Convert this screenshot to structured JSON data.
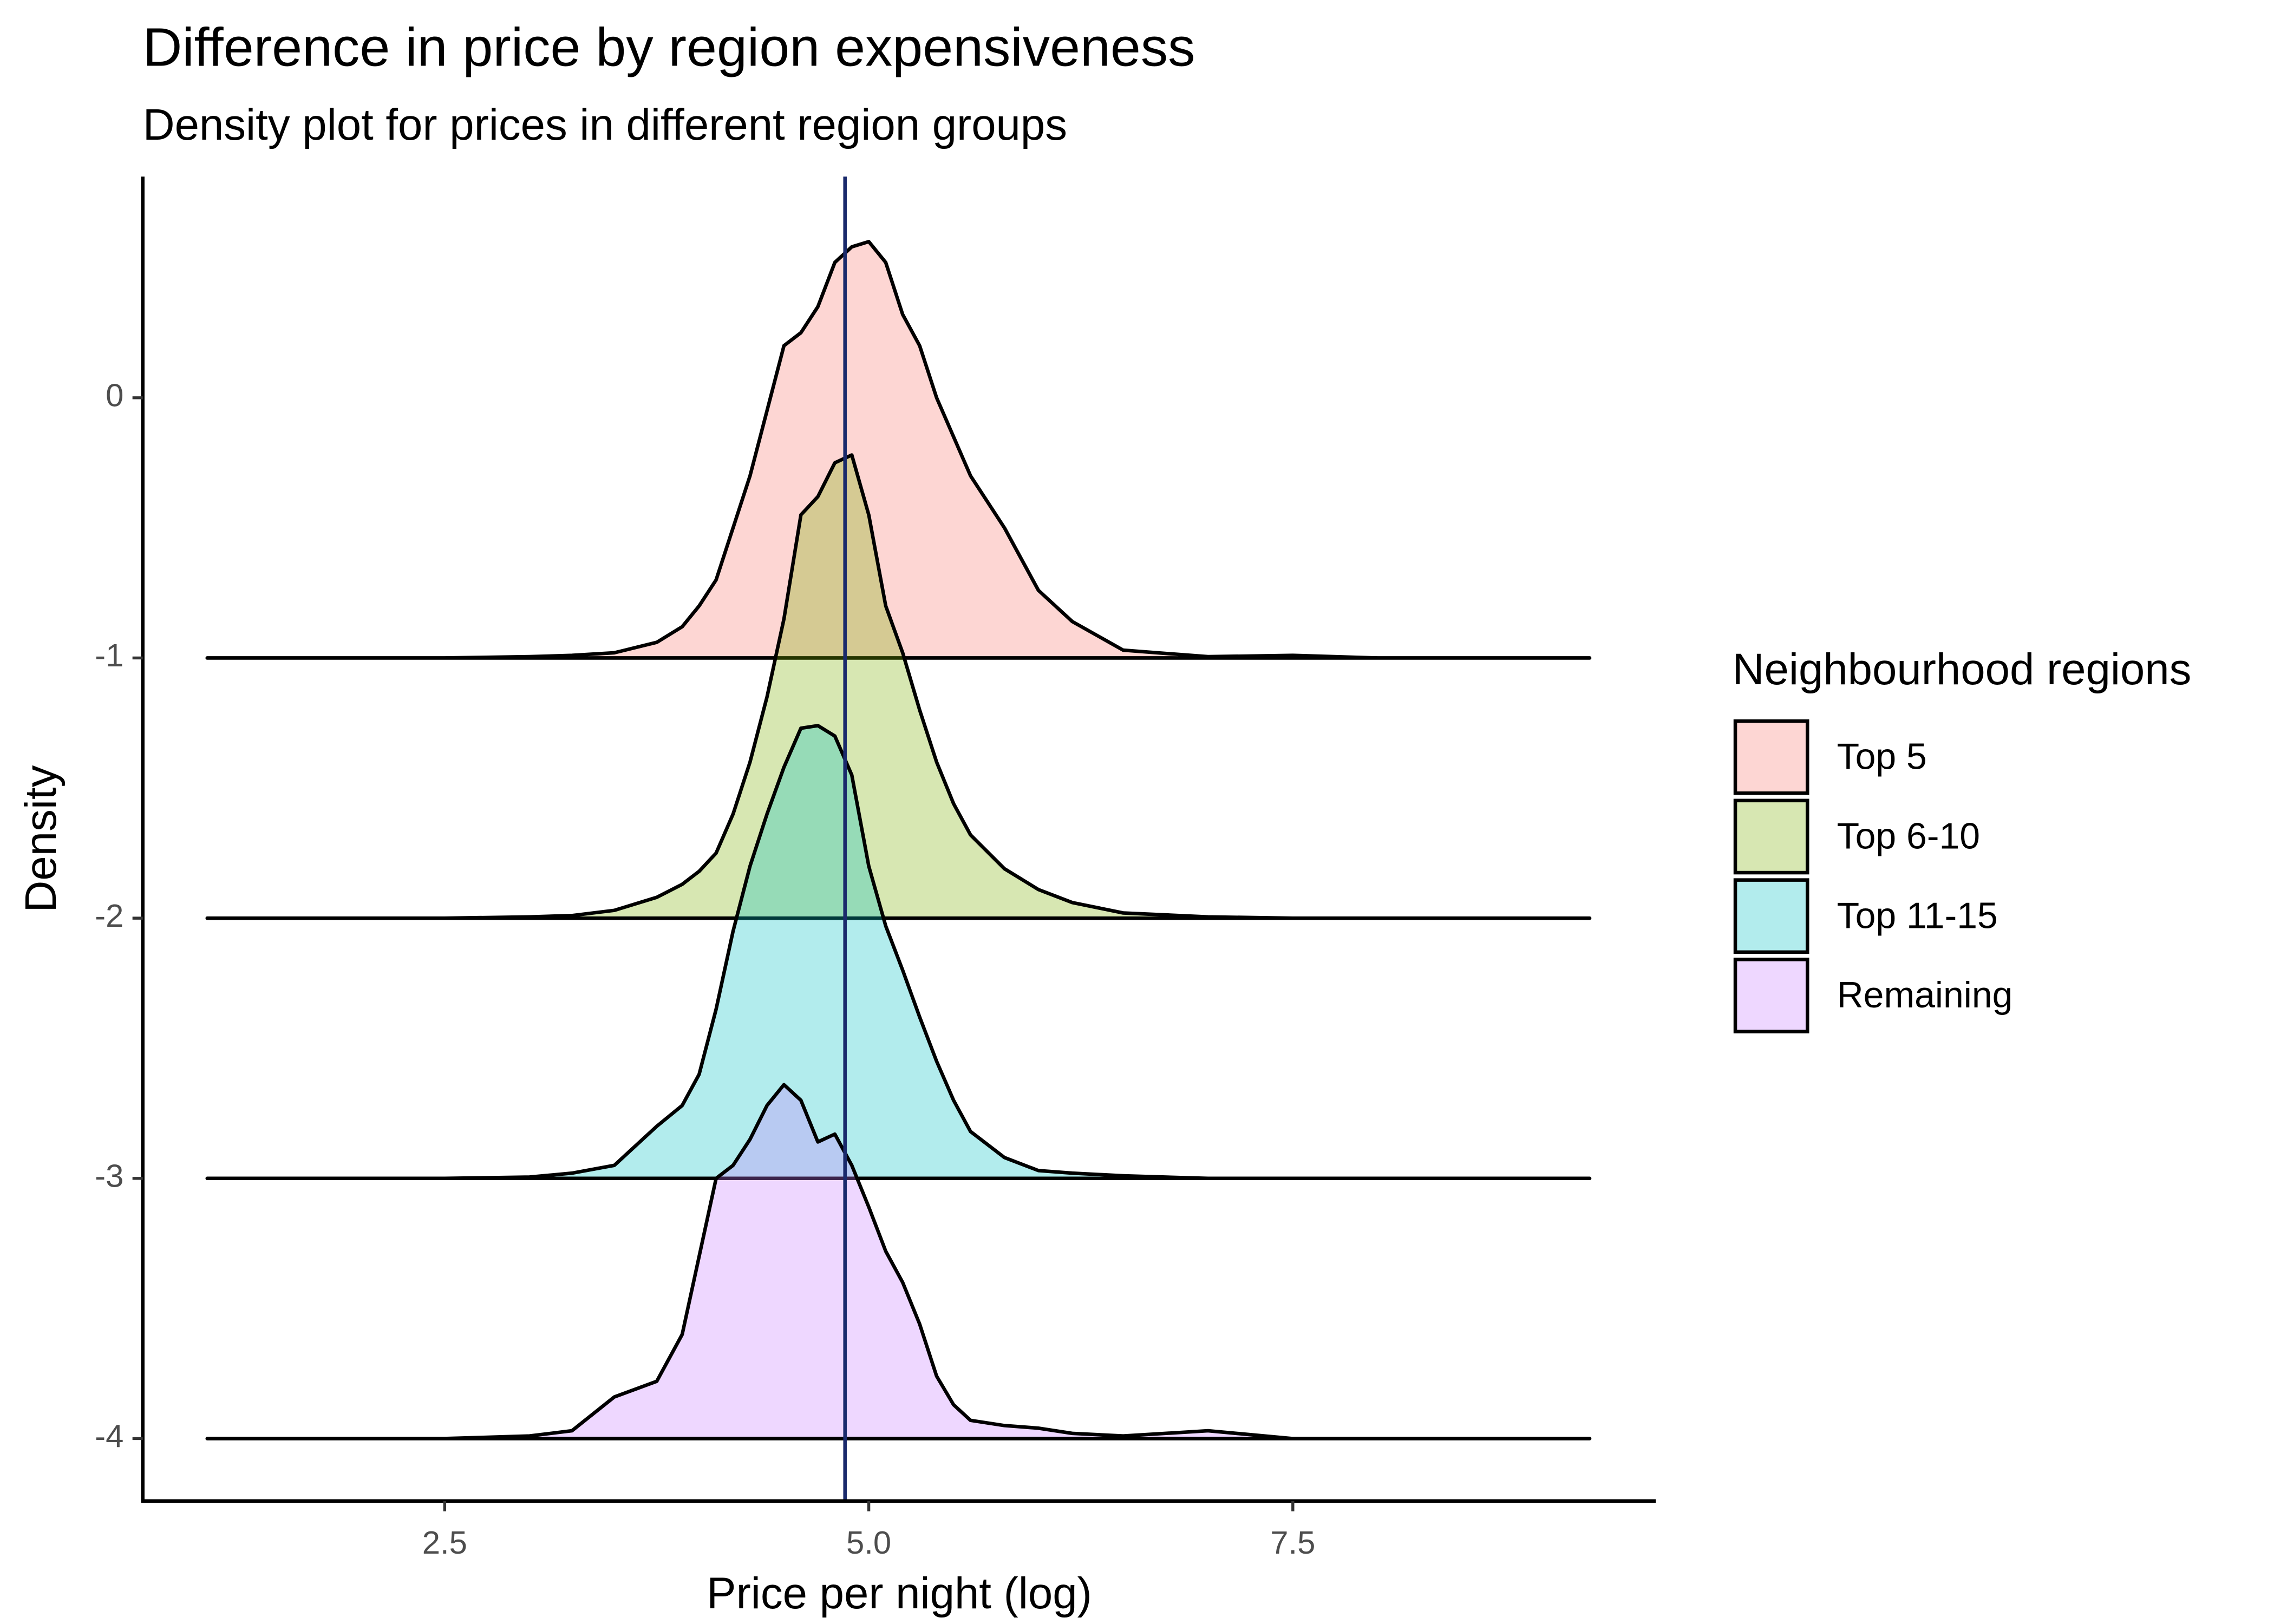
{
  "chart_data": {
    "type": "ridgeline",
    "title": "Difference in price by region expensiveness",
    "subtitle": "Density plot for prices in different region groups",
    "x_label": "Price per night (log)",
    "y_label": "Density",
    "legend_title": "Neighbourhood regions",
    "legend_position": "right",
    "grid": false,
    "fill_opacity": 0.3,
    "xlim": [
      0.72,
      9.64
    ],
    "ylim": [
      -4.24,
      0.85
    ],
    "xticks": [
      2.5,
      {
        "value": 5,
        "label": "5.0"
      },
      7.5
    ],
    "yticks": [
      -4,
      -3,
      -2,
      -1,
      0
    ],
    "vline": {
      "value": 4.86,
      "color": "#1a2a6c"
    },
    "x": [
      1.1,
      2.5,
      3.0,
      3.25,
      3.5,
      3.75,
      3.9,
      4.0,
      4.1,
      4.2,
      4.3,
      4.4,
      4.5,
      4.6,
      4.7,
      4.8,
      4.9,
      5.0,
      5.1,
      5.2,
      5.3,
      5.4,
      5.5,
      5.6,
      5.8,
      6.0,
      6.2,
      6.5,
      7.0,
      7.5,
      8.0,
      9.25
    ],
    "series": [
      {
        "name": "Top 5",
        "color": "#F8766D",
        "values": [
          -1,
          -1,
          -0.995,
          -0.99,
          -0.98,
          -0.94,
          -0.88,
          -0.8,
          -0.7,
          -0.5,
          -0.3,
          -0.05,
          0.2,
          0.25,
          0.35,
          0.52,
          0.58,
          0.6,
          0.52,
          0.32,
          0.2,
          0.0,
          -0.15,
          -0.3,
          -0.5,
          -0.74,
          -0.86,
          -0.97,
          -0.995,
          -0.99,
          -1,
          -1
        ]
      },
      {
        "name": "Top 6-10",
        "color": "#7CAE00",
        "values": [
          -2,
          -2,
          -1.995,
          -1.99,
          -1.97,
          -1.92,
          -1.87,
          -1.82,
          -1.75,
          -1.6,
          -1.4,
          -1.15,
          -0.85,
          -0.45,
          -0.38,
          -0.25,
          -0.22,
          -0.45,
          -0.8,
          -0.98,
          -1.2,
          -1.4,
          -1.56,
          -1.68,
          -1.81,
          -1.89,
          -1.94,
          -1.98,
          -1.995,
          -2,
          -2,
          -2
        ]
      },
      {
        "name": "Top 11-15",
        "color": "#00BFC4",
        "values": [
          -3,
          -3,
          -2.995,
          -2.98,
          -2.95,
          -2.8,
          -2.72,
          -2.6,
          -2.35,
          -2.05,
          -1.8,
          -1.6,
          -1.42,
          -1.27,
          -1.26,
          -1.3,
          -1.45,
          -1.8,
          -2.03,
          -2.2,
          -2.38,
          -2.55,
          -2.7,
          -2.82,
          -2.92,
          -2.97,
          -2.98,
          -2.99,
          -3,
          -3,
          -3,
          -3
        ]
      },
      {
        "name": "Remaining",
        "color": "#C77CFF",
        "values": [
          -4,
          -4,
          -3.99,
          -3.97,
          -3.84,
          -3.78,
          -3.6,
          -3.3,
          -3.0,
          -2.95,
          -2.85,
          -2.72,
          -2.64,
          -2.7,
          -2.86,
          -2.83,
          -2.95,
          -3.11,
          -3.28,
          -3.4,
          -3.56,
          -3.76,
          -3.87,
          -3.93,
          -3.95,
          -3.96,
          -3.98,
          -3.99,
          -3.97,
          -4,
          -4,
          -4
        ]
      }
    ]
  }
}
